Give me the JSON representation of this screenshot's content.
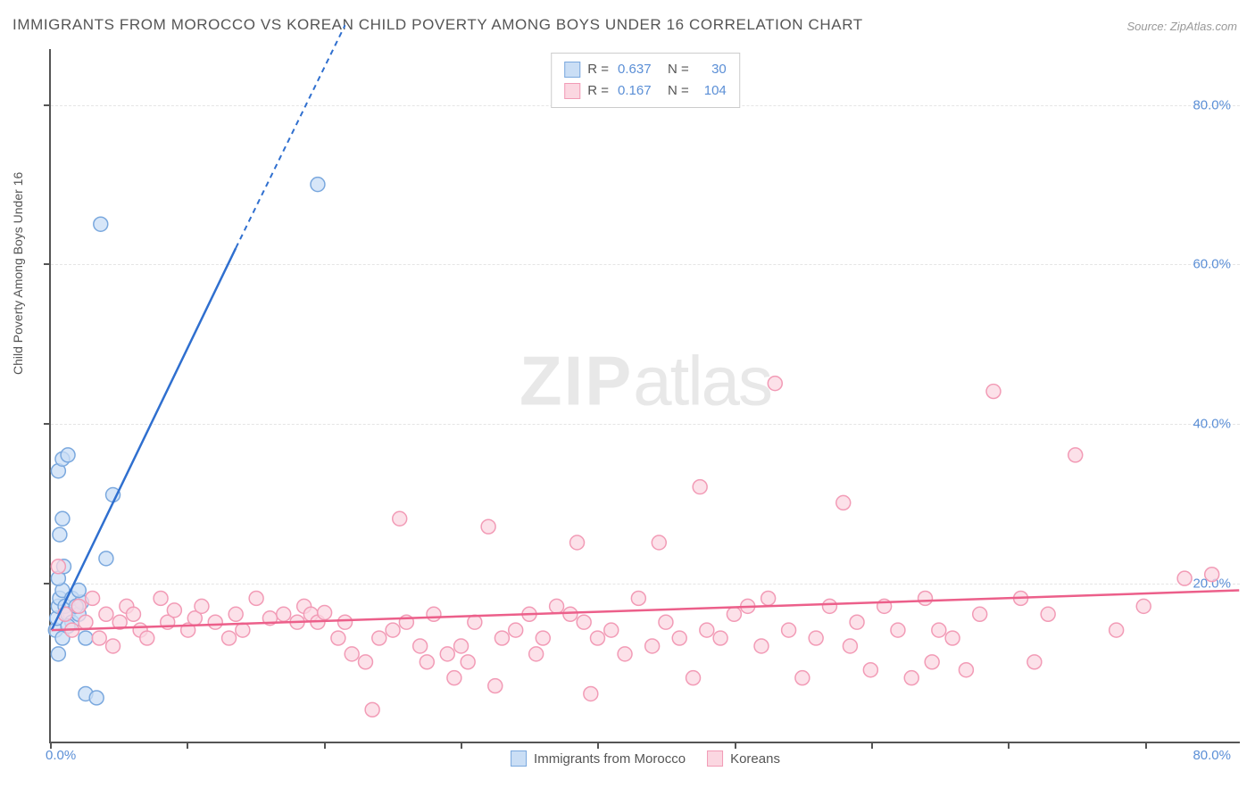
{
  "title": "IMMIGRANTS FROM MOROCCO VS KOREAN CHILD POVERTY AMONG BOYS UNDER 16 CORRELATION CHART",
  "source": "Source: ZipAtlas.com",
  "watermark_zip": "ZIP",
  "watermark_atlas": "atlas",
  "chart": {
    "type": "scatter",
    "ylabel": "Child Poverty Among Boys Under 16",
    "xlim": [
      0,
      87
    ],
    "ylim": [
      0,
      87
    ],
    "xtick_min_label": "0.0%",
    "xtick_max_label": "80.0%",
    "xtick_max_value": 80,
    "ytick_values": [
      20,
      40,
      60,
      80
    ],
    "ytick_labels": [
      "20.0%",
      "40.0%",
      "60.0%",
      "80.0%"
    ],
    "background_color": "#ffffff",
    "grid_color": "#e5e5e5",
    "axis_color": "#555555",
    "label_color": "#555555",
    "tick_color": "#5b8fd6",
    "marker_radius": 8,
    "marker_stroke_width": 1.5,
    "trend_line_width": 2.5,
    "trend_dash_width": 2,
    "series": [
      {
        "name": "Immigrants from Morocco",
        "fill": "#cadef5",
        "stroke": "#7aa8de",
        "line_color": "#2f6fcf",
        "R": "0.637",
        "N": "30",
        "trend": {
          "x1": 0,
          "y1": 14,
          "x2": 13.5,
          "y2": 62,
          "dash_x2": 21.5,
          "dash_y2": 90
        },
        "points": [
          [
            0.3,
            14
          ],
          [
            0.4,
            15.5
          ],
          [
            0.5,
            17
          ],
          [
            0.6,
            18
          ],
          [
            0.8,
            19
          ],
          [
            0.5,
            20.5
          ],
          [
            1.0,
            17
          ],
          [
            1.2,
            16
          ],
          [
            1.5,
            18
          ],
          [
            1.5,
            15
          ],
          [
            2.0,
            16
          ],
          [
            2.2,
            17.5
          ],
          [
            0.9,
            22
          ],
          [
            0.6,
            26
          ],
          [
            0.8,
            28
          ],
          [
            0.5,
            34
          ],
          [
            0.8,
            35.5
          ],
          [
            1.2,
            36
          ],
          [
            4.0,
            23
          ],
          [
            4.5,
            31
          ],
          [
            2.5,
            13
          ],
          [
            0.5,
            11
          ],
          [
            2.5,
            6
          ],
          [
            3.3,
            5.5
          ],
          [
            0.8,
            13
          ],
          [
            1.2,
            14.5
          ],
          [
            1.8,
            17
          ],
          [
            2.0,
            19
          ],
          [
            3.6,
            65
          ],
          [
            19.5,
            70
          ]
        ]
      },
      {
        "name": "Koreans",
        "fill": "#fbd7e1",
        "stroke": "#f29bb6",
        "line_color": "#ec5f8a",
        "R": "0.167",
        "N": "104",
        "trend": {
          "x1": 0,
          "y1": 14,
          "x2": 87,
          "y2": 19
        },
        "points": [
          [
            0.5,
            22
          ],
          [
            1,
            16
          ],
          [
            1.5,
            14
          ],
          [
            2,
            17
          ],
          [
            2.5,
            15
          ],
          [
            3,
            18
          ],
          [
            3.5,
            13
          ],
          [
            4,
            16
          ],
          [
            4.5,
            12
          ],
          [
            5,
            15
          ],
          [
            5.5,
            17
          ],
          [
            6,
            16
          ],
          [
            6.5,
            14
          ],
          [
            7,
            13
          ],
          [
            8,
            18
          ],
          [
            8.5,
            15
          ],
          [
            9,
            16.5
          ],
          [
            10,
            14
          ],
          [
            10.5,
            15.5
          ],
          [
            11,
            17
          ],
          [
            12,
            15
          ],
          [
            13,
            13
          ],
          [
            13.5,
            16
          ],
          [
            14,
            14
          ],
          [
            15,
            18
          ],
          [
            16,
            15.5
          ],
          [
            17,
            16
          ],
          [
            18,
            15
          ],
          [
            18.5,
            17
          ],
          [
            19,
            16
          ],
          [
            19.5,
            15
          ],
          [
            20,
            16.2
          ],
          [
            21,
            13
          ],
          [
            21.5,
            15
          ],
          [
            22,
            11
          ],
          [
            23,
            10
          ],
          [
            23.5,
            4
          ],
          [
            24,
            13
          ],
          [
            25,
            14
          ],
          [
            25.5,
            28
          ],
          [
            26,
            15
          ],
          [
            27,
            12
          ],
          [
            27.5,
            10
          ],
          [
            28,
            16
          ],
          [
            29,
            11
          ],
          [
            29.5,
            8
          ],
          [
            30,
            12
          ],
          [
            30.5,
            10
          ],
          [
            31,
            15
          ],
          [
            32,
            27
          ],
          [
            32.5,
            7
          ],
          [
            33,
            13
          ],
          [
            34,
            14
          ],
          [
            35,
            16
          ],
          [
            35.5,
            11
          ],
          [
            36,
            13
          ],
          [
            37,
            17
          ],
          [
            38,
            16
          ],
          [
            38.5,
            25
          ],
          [
            39,
            15
          ],
          [
            39.5,
            6
          ],
          [
            40,
            13
          ],
          [
            41,
            14
          ],
          [
            42,
            11
          ],
          [
            43,
            18
          ],
          [
            44,
            12
          ],
          [
            44.5,
            25
          ],
          [
            45,
            15
          ],
          [
            46,
            13
          ],
          [
            47,
            8
          ],
          [
            47.5,
            32
          ],
          [
            48,
            14
          ],
          [
            49,
            13
          ],
          [
            50,
            16
          ],
          [
            51,
            17
          ],
          [
            52,
            12
          ],
          [
            52.5,
            18
          ],
          [
            53,
            45
          ],
          [
            54,
            14
          ],
          [
            55,
            8
          ],
          [
            56,
            13
          ],
          [
            57,
            17
          ],
          [
            58,
            30
          ],
          [
            58.5,
            12
          ],
          [
            59,
            15
          ],
          [
            60,
            9
          ],
          [
            61,
            17
          ],
          [
            62,
            14
          ],
          [
            63,
            8
          ],
          [
            64,
            18
          ],
          [
            64.5,
            10
          ],
          [
            65,
            14
          ],
          [
            66,
            13
          ],
          [
            67,
            9
          ],
          [
            68,
            16
          ],
          [
            69,
            44
          ],
          [
            71,
            18
          ],
          [
            72,
            10
          ],
          [
            73,
            16
          ],
          [
            75,
            36
          ],
          [
            78,
            14
          ],
          [
            80,
            17
          ],
          [
            83,
            20.5
          ],
          [
            85,
            21
          ]
        ]
      }
    ],
    "bottom_legend": [
      {
        "label": "Immigrants from Morocco",
        "fill": "#cadef5",
        "stroke": "#7aa8de"
      },
      {
        "label": "Koreans",
        "fill": "#fbd7e1",
        "stroke": "#f29bb6"
      }
    ]
  }
}
